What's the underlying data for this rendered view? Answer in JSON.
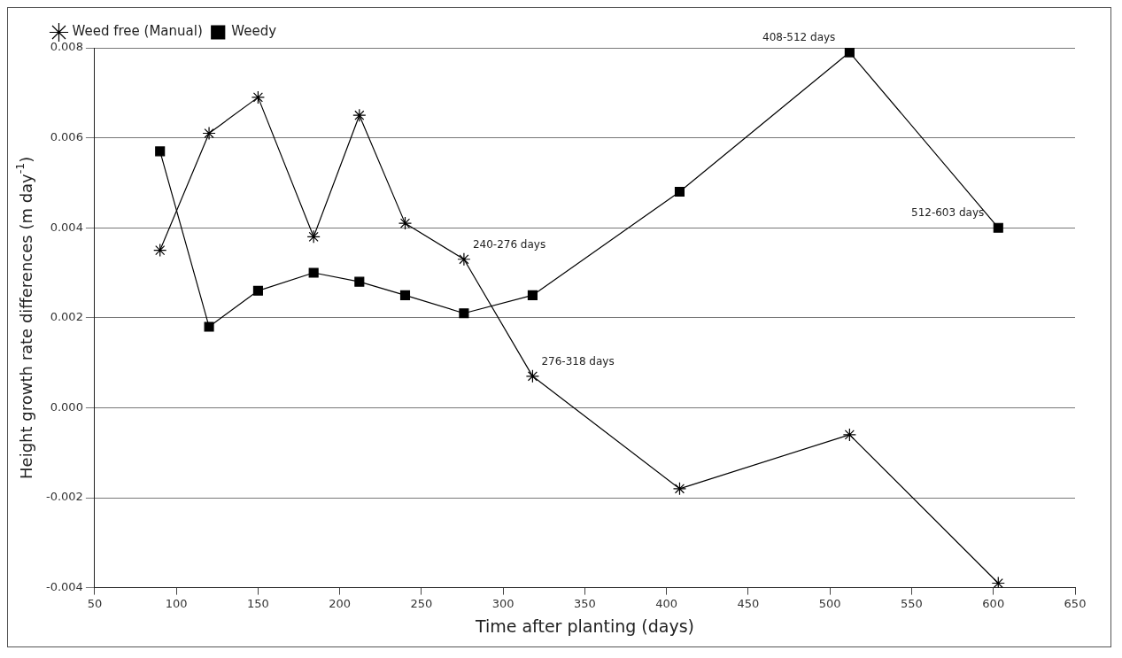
{
  "chart_data": {
    "type": "line",
    "xlabel": "Time after planting (days)",
    "ylabel": "Height growth rate differences (m day$^{-1}$)",
    "x": [
      90,
      120,
      150,
      184,
      212,
      240,
      276,
      318,
      408,
      512,
      603
    ],
    "series": [
      {
        "name": "Weed free (Manual)",
        "color": "#000000",
        "marker": "cross",
        "values": [
          0.0035,
          0.0061,
          0.0069,
          0.0038,
          0.0065,
          0.0041,
          0.0033,
          0.0007,
          -0.0018,
          -0.0006,
          -0.0039
        ]
      },
      {
        "name": "Weedy",
        "color": "#000000",
        "marker": "square",
        "values": [
          0.0057,
          0.0018,
          0.0026,
          0.003,
          0.0028,
          0.0025,
          0.0021,
          0.0025,
          0.0048,
          0.0079,
          0.004
        ]
      }
    ],
    "xlim": [
      50,
      650
    ],
    "xticks": [
      50,
      100,
      150,
      200,
      250,
      300,
      350,
      400,
      450,
      500,
      550,
      600,
      650
    ],
    "ylim": [
      -0.004,
      0.008
    ],
    "yticks": [
      -0.004,
      -0.002,
      {
        "value": 0,
        "label": "0.000"
      },
      0.002,
      0.004,
      0.006,
      0.008
    ],
    "grid": "y",
    "legend": "top left",
    "line_style": "solid",
    "annotations": [
      {
        "text": "240-276 days",
        "x": 276,
        "y": 0.0033
      },
      {
        "text": "276-318 days",
        "x": 318,
        "y": 0.0007
      },
      {
        "text": "408-512 days",
        "x": 512,
        "y": 0.0079
      },
      {
        "text": "512-603 days",
        "x": 603,
        "y": 0.004
      }
    ]
  }
}
